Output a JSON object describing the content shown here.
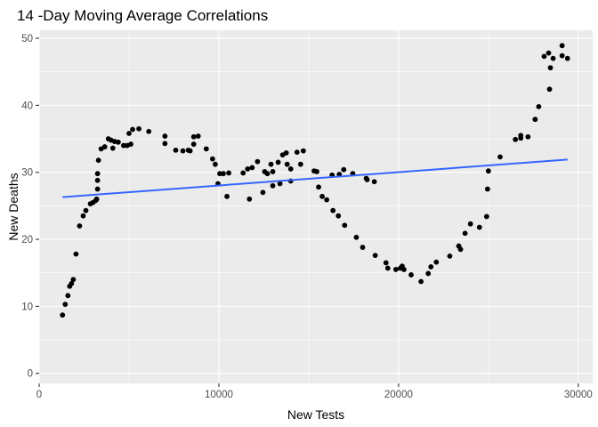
{
  "chart_data": {
    "type": "scatter",
    "title": "14 -Day Moving Average Correlations",
    "xlabel": "New Tests",
    "ylabel": "New Deaths",
    "xlim": [
      0,
      30800
    ],
    "ylim": [
      -1.5,
      51.2
    ],
    "xticks": [
      0,
      10000,
      20000,
      30000
    ],
    "xtick_labels": [
      "0",
      "10000",
      "20000",
      "30000"
    ],
    "yticks": [
      0,
      10,
      20,
      30,
      40,
      50
    ],
    "ytick_labels": [
      "0",
      "10",
      "20",
      "30",
      "40",
      "50"
    ],
    "grid": true,
    "legend": "none",
    "trend_line": {
      "x": [
        1300,
        29400
      ],
      "y": [
        26.3,
        31.9
      ],
      "color": "#3366FF"
    },
    "points": [
      [
        1300,
        8.7
      ],
      [
        1450,
        10.3
      ],
      [
        1600,
        11.6
      ],
      [
        1700,
        13.0
      ],
      [
        1800,
        13.4
      ],
      [
        1900,
        14.0
      ],
      [
        2050,
        17.8
      ],
      [
        2250,
        22.0
      ],
      [
        2450,
        23.5
      ],
      [
        2600,
        24.3
      ],
      [
        2850,
        25.3
      ],
      [
        3000,
        25.5
      ],
      [
        3150,
        25.8
      ],
      [
        3200,
        26.0
      ],
      [
        3250,
        27.5
      ],
      [
        3250,
        28.8
      ],
      [
        3250,
        29.8
      ],
      [
        3300,
        31.8
      ],
      [
        3450,
        33.5
      ],
      [
        3650,
        33.8
      ],
      [
        3850,
        35.0
      ],
      [
        4000,
        34.8
      ],
      [
        4100,
        33.6
      ],
      [
        4200,
        34.6
      ],
      [
        4400,
        34.5
      ],
      [
        4700,
        34.0
      ],
      [
        4900,
        34.0
      ],
      [
        5100,
        34.2
      ],
      [
        5000,
        35.8
      ],
      [
        5200,
        36.4
      ],
      [
        5550,
        36.5
      ],
      [
        6100,
        36.1
      ],
      [
        7000,
        35.4
      ],
      [
        7000,
        34.3
      ],
      [
        7600,
        33.3
      ],
      [
        8000,
        33.2
      ],
      [
        8300,
        33.3
      ],
      [
        8400,
        33.2
      ],
      [
        8600,
        34.2
      ],
      [
        8600,
        35.3
      ],
      [
        8850,
        35.4
      ],
      [
        9300,
        33.5
      ],
      [
        9650,
        32.0
      ],
      [
        9800,
        31.2
      ],
      [
        9950,
        28.3
      ],
      [
        10050,
        29.8
      ],
      [
        10250,
        29.8
      ],
      [
        10450,
        26.4
      ],
      [
        10550,
        29.9
      ],
      [
        11350,
        29.9
      ],
      [
        11600,
        30.5
      ],
      [
        11700,
        26.0
      ],
      [
        11850,
        30.7
      ],
      [
        12150,
        31.6
      ],
      [
        12450,
        27.0
      ],
      [
        12550,
        30.1
      ],
      [
        12700,
        29.8
      ],
      [
        12900,
        31.2
      ],
      [
        13000,
        30.1
      ],
      [
        13000,
        28.0
      ],
      [
        13300,
        31.5
      ],
      [
        13400,
        28.3
      ],
      [
        13550,
        32.6
      ],
      [
        13750,
        32.9
      ],
      [
        13800,
        31.2
      ],
      [
        14000,
        28.7
      ],
      [
        14000,
        30.5
      ],
      [
        14350,
        33.0
      ],
      [
        14550,
        31.2
      ],
      [
        14700,
        33.2
      ],
      [
        15300,
        30.2
      ],
      [
        15450,
        30.1
      ],
      [
        15550,
        27.8
      ],
      [
        15750,
        26.4
      ],
      [
        16000,
        25.9
      ],
      [
        16300,
        29.6
      ],
      [
        16350,
        24.3
      ],
      [
        16650,
        23.5
      ],
      [
        16700,
        29.7
      ],
      [
        16950,
        30.4
      ],
      [
        17000,
        22.1
      ],
      [
        17450,
        29.8
      ],
      [
        17650,
        20.3
      ],
      [
        18000,
        18.8
      ],
      [
        18200,
        29.1
      ],
      [
        18250,
        28.9
      ],
      [
        18650,
        28.6
      ],
      [
        18700,
        17.6
      ],
      [
        19300,
        16.5
      ],
      [
        19400,
        15.7
      ],
      [
        19850,
        15.5
      ],
      [
        20100,
        15.7
      ],
      [
        20200,
        16.0
      ],
      [
        20300,
        15.5
      ],
      [
        20700,
        14.7
      ],
      [
        21250,
        13.7
      ],
      [
        21650,
        14.9
      ],
      [
        21800,
        15.9
      ],
      [
        22100,
        16.6
      ],
      [
        22850,
        17.5
      ],
      [
        23350,
        19.0
      ],
      [
        23450,
        18.5
      ],
      [
        23700,
        20.9
      ],
      [
        24000,
        22.3
      ],
      [
        24500,
        21.8
      ],
      [
        24900,
        23.4
      ],
      [
        24950,
        27.5
      ],
      [
        25000,
        30.2
      ],
      [
        25650,
        32.3
      ],
      [
        26500,
        34.9
      ],
      [
        26800,
        35.5
      ],
      [
        26800,
        35.1
      ],
      [
        27200,
        35.3
      ],
      [
        27600,
        37.9
      ],
      [
        27800,
        39.8
      ],
      [
        28100,
        47.3
      ],
      [
        28350,
        47.8
      ],
      [
        28450,
        45.6
      ],
      [
        28400,
        42.4
      ],
      [
        28600,
        47.0
      ],
      [
        29100,
        47.4
      ],
      [
        29100,
        48.9
      ],
      [
        29400,
        47.0
      ]
    ]
  }
}
